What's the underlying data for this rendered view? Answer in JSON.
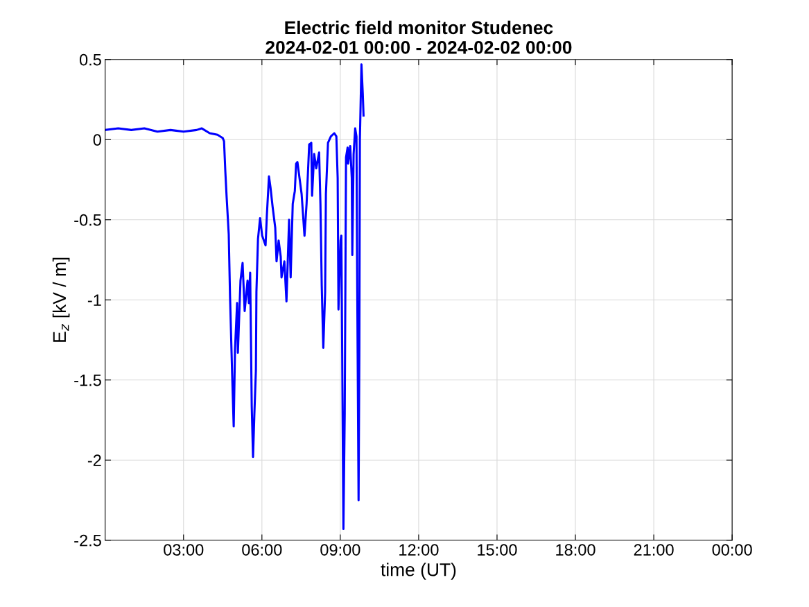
{
  "chart_data": {
    "type": "line",
    "title": "Electric field monitor Studenec\n2024-02-01 00:00 - 2024-02-02 00:00",
    "xlabel": "time (UT)",
    "ylabel": "E$_{z}$ [kV / m]",
    "xlim": [
      0,
      24
    ],
    "xticks": [
      {
        "value": 3,
        "label": "03:00"
      },
      {
        "value": 6,
        "label": "06:00"
      },
      {
        "value": 9,
        "label": "09:00"
      },
      {
        "value": 12,
        "label": "12:00"
      },
      {
        "value": 15,
        "label": "15:00"
      },
      {
        "value": 18,
        "label": "18:00"
      },
      {
        "value": 21,
        "label": "21:00"
      },
      {
        "value": 24,
        "label": "00:00"
      }
    ],
    "ylim": [
      -2.5,
      0.5
    ],
    "yticks": [
      {
        "value": -2.5,
        "label": "-2.5"
      },
      {
        "value": -2,
        "label": "-2"
      },
      {
        "value": -1.5,
        "label": "-1.5"
      },
      {
        "value": -1,
        "label": "-1"
      },
      {
        "value": -0.5,
        "label": "-0.5"
      },
      {
        "value": 0,
        "label": "0"
      },
      {
        "value": 0.5,
        "label": "0.5"
      }
    ],
    "grid": true,
    "marker": "none",
    "line_style": "solid",
    "series": [
      {
        "color": "#0000ff",
        "x": [
          0,
          0.5,
          1,
          1.5,
          2,
          2.5,
          3,
          3.5,
          3.7,
          4,
          4.3,
          4.5,
          4.55,
          4.6,
          4.65,
          4.73,
          4.78,
          4.86,
          4.92,
          4.97,
          5.05,
          5.08,
          5.18,
          5.26,
          5.34,
          5.45,
          5.5,
          5.55,
          5.58,
          5.61,
          5.66,
          5.71,
          5.77,
          5.79,
          5.85,
          5.93,
          6.01,
          6.14,
          6.19,
          6.25,
          6.27,
          6.33,
          6.41,
          6.51,
          6.56,
          6.64,
          6.72,
          6.75,
          6.86,
          6.94,
          7.04,
          7.1,
          7.18,
          7.26,
          7.31,
          7.36,
          7.44,
          7.52,
          7.63,
          7.71,
          7.81,
          7.89,
          7.92,
          8.0,
          8.08,
          8.19,
          8.24,
          8.29,
          8.35,
          8.42,
          8.45,
          8.53,
          8.64,
          8.77,
          8.85,
          8.9,
          8.93,
          9.01,
          9.04,
          9.06,
          9.12,
          9.17,
          9.22,
          9.28,
          9.3,
          9.38,
          9.44,
          9.46,
          9.51,
          9.57,
          9.62,
          9.65,
          9.7,
          9.73,
          9.75,
          9.81,
          9.86,
          9.89
        ],
        "values": [
          0.06,
          0.07,
          0.06,
          0.07,
          0.05,
          0.06,
          0.05,
          0.06,
          0.07,
          0.04,
          0.03,
          0.01,
          -0.01,
          -0.2,
          -0.36,
          -0.59,
          -0.98,
          -1.46,
          -1.79,
          -1.31,
          -1.02,
          -1.33,
          -0.88,
          -0.77,
          -1.07,
          -0.88,
          -1.02,
          -0.83,
          -1.24,
          -1.66,
          -1.98,
          -1.72,
          -1.44,
          -0.95,
          -0.62,
          -0.49,
          -0.6,
          -0.66,
          -0.47,
          -0.29,
          -0.23,
          -0.3,
          -0.42,
          -0.55,
          -0.76,
          -0.63,
          -0.73,
          -0.86,
          -0.76,
          -1.01,
          -0.5,
          -0.86,
          -0.4,
          -0.32,
          -0.15,
          -0.14,
          -0.24,
          -0.34,
          -0.6,
          -0.4,
          -0.03,
          -0.02,
          -0.35,
          -0.09,
          -0.18,
          -0.08,
          -0.4,
          -0.91,
          -1.3,
          -0.95,
          -0.34,
          -0.02,
          0.02,
          0.04,
          0.02,
          -0.24,
          -1.06,
          -0.63,
          -0.6,
          -1.02,
          -2.43,
          -1.71,
          -0.11,
          -0.05,
          -0.15,
          -0.04,
          -0.24,
          -0.72,
          -0.09,
          0.07,
          0.02,
          -0.95,
          -2.25,
          -1.31,
          0.0,
          0.47,
          0.29,
          0.15
        ]
      }
    ]
  }
}
